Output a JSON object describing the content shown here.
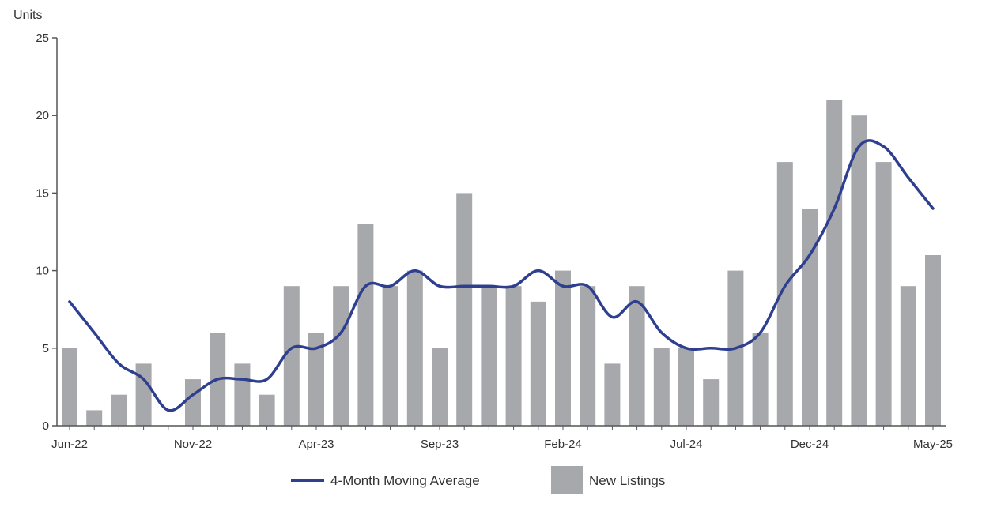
{
  "chart_data": {
    "type": "bar",
    "ylabel": "Units",
    "ylim": [
      0,
      25
    ],
    "yticks": [
      0,
      5,
      10,
      15,
      20,
      25
    ],
    "grid": false,
    "legend_position": "bottom-center",
    "categories": [
      "Jun-22",
      "Jul-22",
      "Aug-22",
      "Sep-22",
      "Oct-22",
      "Nov-22",
      "Dec-22",
      "Jan-23",
      "Feb-23",
      "Mar-23",
      "Apr-23",
      "May-23",
      "Jun-23",
      "Jul-23",
      "Aug-23",
      "Sep-23",
      "Oct-23",
      "Nov-23",
      "Dec-23",
      "Jan-24",
      "Feb-24",
      "Mar-24",
      "Apr-24",
      "May-24",
      "Jun-24",
      "Jul-24",
      "Aug-24",
      "Sep-24",
      "Oct-24",
      "Nov-24",
      "Dec-24",
      "Jan-25",
      "Feb-25",
      "Mar-25",
      "Apr-25",
      "May-25"
    ],
    "x_tick_labels": [
      "Jun-22",
      "Nov-22",
      "Apr-23",
      "Sep-23",
      "Feb-24",
      "Jul-24",
      "Dec-24",
      "May-25"
    ],
    "x_tick_indices": [
      0,
      5,
      10,
      15,
      20,
      25,
      30,
      35
    ],
    "series": [
      {
        "name": "New Listings",
        "type": "bar",
        "color": "#a6a8ab",
        "values": [
          5,
          1,
          2,
          4,
          0,
          3,
          6,
          4,
          2,
          9,
          6,
          9,
          13,
          9,
          10,
          5,
          15,
          9,
          9,
          8,
          10,
          9,
          4,
          9,
          5,
          5,
          3,
          10,
          6,
          17,
          14,
          21,
          20,
          17,
          9,
          11
        ]
      },
      {
        "name": "4-Month Moving Average",
        "type": "line",
        "color": "#2e3f8f",
        "values": [
          8,
          6,
          4,
          3,
          1,
          2,
          3,
          3,
          3,
          5,
          5,
          6,
          9,
          9,
          10,
          9,
          9,
          9,
          9,
          10,
          9,
          9,
          7,
          8,
          6,
          5,
          5,
          5,
          6,
          9,
          11,
          14,
          18,
          18,
          16,
          14
        ]
      }
    ],
    "legend": [
      {
        "label": "4-Month Moving Average",
        "kind": "line"
      },
      {
        "label": "New Listings",
        "kind": "box"
      }
    ]
  }
}
